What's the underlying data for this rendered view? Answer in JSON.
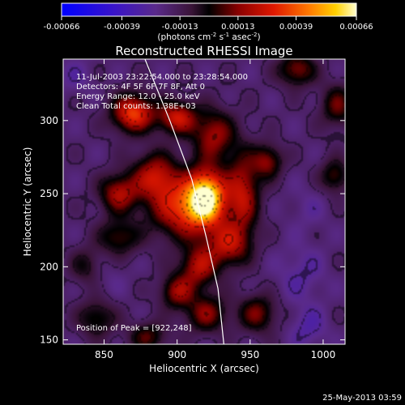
{
  "chart_data": {
    "type": "heatmap",
    "title": "Reconstructed RHESSI Image",
    "xlabel": "Heliocentric X (arcsec)",
    "ylabel": "Heliocentric Y (arcsec)",
    "xlim": [
      822,
      1015
    ],
    "ylim": [
      147,
      342
    ],
    "x_ticks": [
      850,
      900,
      950,
      1000
    ],
    "y_ticks": [
      150,
      200,
      250,
      300
    ],
    "colorbar": {
      "min": -0.00066,
      "max": 0.00066,
      "ticks": [
        "-0.00066",
        "-0.00039",
        "-0.00013",
        "0.00013",
        "0.00039",
        "0.00066"
      ],
      "tick_values": [
        -0.00066,
        -0.00039,
        -0.00013,
        0.00013,
        0.00039,
        0.00066
      ],
      "unit_prefix": "(photons cm",
      "unit_sup1": "-2",
      "unit_mid": " s",
      "unit_sup2": "-1",
      "unit_mid2": " asec",
      "unit_sup3": "-2",
      "unit_suffix": ")"
    },
    "annotations": [
      "11-Jul-2003 23:22:54.000 to 23:28:54.000",
      "Detectors: 4F 5F 6F 7F 8F, Att 0",
      "Energy Range: 12.0 - 25.0 keV",
      "Clean    Total counts: 1.38E+03"
    ],
    "peak_label": "Position of Peak = [922,248]",
    "peak": [
      922,
      248
    ],
    "sources": [
      {
        "x": 920,
        "y": 248,
        "value": 0.00066,
        "sx": 9,
        "sy": 13
      },
      {
        "x": 905,
        "y": 240,
        "value": 0.00042,
        "sx": 16,
        "sy": 14
      },
      {
        "x": 870,
        "y": 305,
        "value": 0.00046,
        "sx": 10,
        "sy": 9
      },
      {
        "x": 900,
        "y": 302,
        "value": 0.00036,
        "sx": 9,
        "sy": 8
      },
      {
        "x": 860,
        "y": 250,
        "value": 0.0003,
        "sx": 9,
        "sy": 9
      },
      {
        "x": 885,
        "y": 262,
        "value": 0.00032,
        "sx": 11,
        "sy": 11
      },
      {
        "x": 925,
        "y": 290,
        "value": 0.00028,
        "sx": 10,
        "sy": 12
      },
      {
        "x": 945,
        "y": 250,
        "value": 0.00032,
        "sx": 8,
        "sy": 20
      },
      {
        "x": 962,
        "y": 272,
        "value": 0.00024,
        "sx": 7,
        "sy": 8
      },
      {
        "x": 935,
        "y": 215,
        "value": 0.0003,
        "sx": 10,
        "sy": 10
      },
      {
        "x": 915,
        "y": 200,
        "value": 0.0003,
        "sx": 9,
        "sy": 10
      },
      {
        "x": 900,
        "y": 183,
        "value": 0.00026,
        "sx": 8,
        "sy": 8
      },
      {
        "x": 920,
        "y": 168,
        "value": 0.00024,
        "sx": 10,
        "sy": 9
      },
      {
        "x": 955,
        "y": 168,
        "value": 0.00022,
        "sx": 9,
        "sy": 9
      },
      {
        "x": 982,
        "y": 335,
        "value": 0.00024,
        "sx": 9,
        "sy": 8
      },
      {
        "x": 1010,
        "y": 310,
        "value": 0.0002,
        "sx": 8,
        "sy": 10
      },
      {
        "x": 1008,
        "y": 262,
        "value": 0.00018,
        "sx": 7,
        "sy": 8
      },
      {
        "x": 838,
        "y": 200,
        "value": 0.00012,
        "sx": 8,
        "sy": 9
      },
      {
        "x": 845,
        "y": 165,
        "value": 0.00016,
        "sx": 9,
        "sy": 9
      },
      {
        "x": 880,
        "y": 152,
        "value": 0.00018,
        "sx": 9,
        "sy": 7
      },
      {
        "x": 860,
        "y": 220,
        "value": 0.00018,
        "sx": 10,
        "sy": 9
      },
      {
        "x": 990,
        "y": 240,
        "value": -0.00012,
        "sx": 10,
        "sy": 12
      },
      {
        "x": 985,
        "y": 195,
        "value": -0.00016,
        "sx": 12,
        "sy": 14
      },
      {
        "x": 990,
        "y": 158,
        "value": -0.00018,
        "sx": 9,
        "sy": 10
      },
      {
        "x": 830,
        "y": 330,
        "value": -0.00014,
        "sx": 9,
        "sy": 9
      },
      {
        "x": 850,
        "y": 195,
        "value": -0.00012,
        "sx": 11,
        "sy": 12
      }
    ],
    "limb_curve": [
      [
        878,
        342
      ],
      [
        895,
        300
      ],
      [
        910,
        260
      ],
      [
        920,
        220
      ],
      [
        928,
        185
      ],
      [
        932,
        147
      ]
    ],
    "grid": false
  },
  "footer": {
    "timestamp": "25-May-2013 03:59"
  }
}
